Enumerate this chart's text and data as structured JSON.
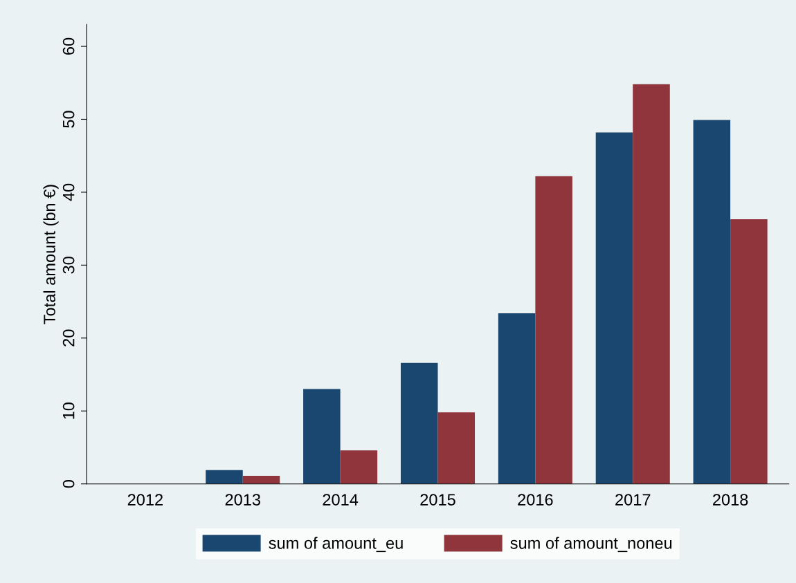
{
  "chart_data": {
    "type": "bar",
    "ylabel": "Total amount (bn €)",
    "categories": [
      "2012",
      "2013",
      "2014",
      "2015",
      "2016",
      "2017",
      "2018"
    ],
    "series": [
      {
        "name": "sum of amount_eu",
        "color": "#1a476f",
        "values": [
          0,
          1.9,
          13.0,
          16.6,
          23.4,
          48.2,
          49.9
        ]
      },
      {
        "name": "sum of amount_noneu",
        "color": "#90353b",
        "values": [
          0,
          1.1,
          4.6,
          9.8,
          42.2,
          54.8,
          36.3
        ]
      }
    ],
    "ylim": [
      0,
      63
    ],
    "yticks": [
      0,
      10,
      20,
      30,
      40,
      50,
      60
    ],
    "grid": false,
    "legend": "bottom"
  }
}
